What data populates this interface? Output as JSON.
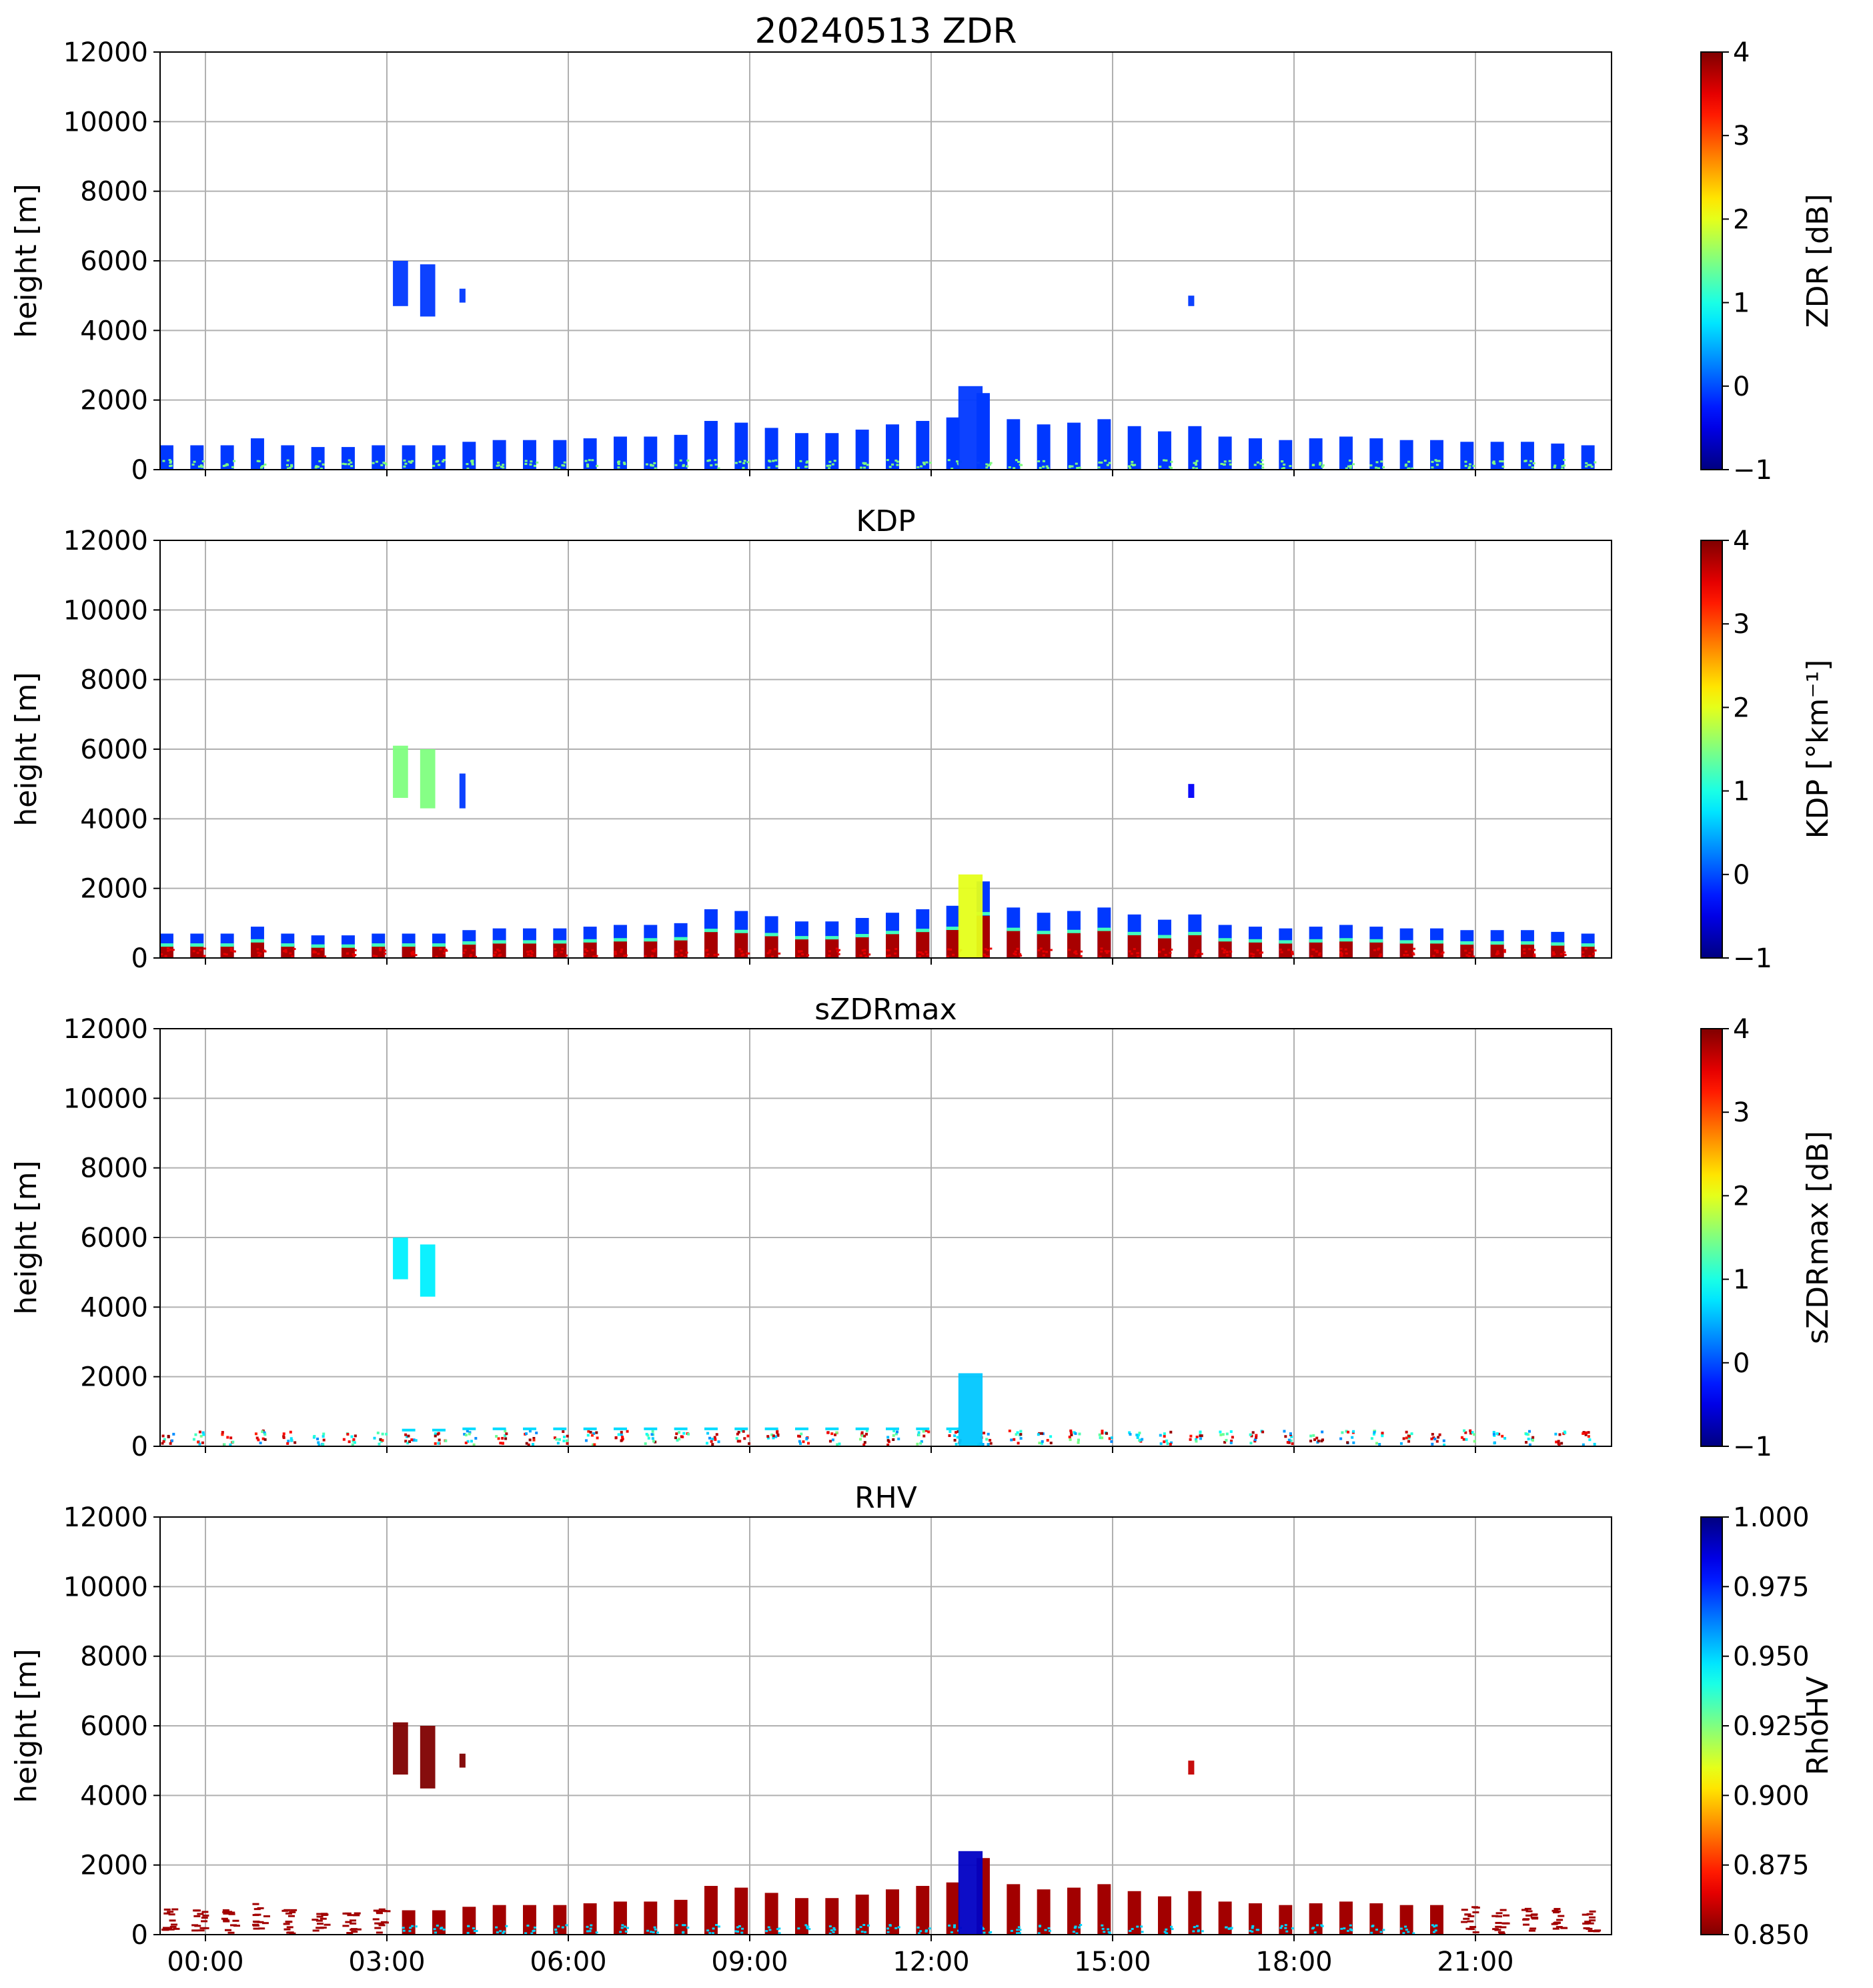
{
  "x_axis": {
    "tick_labels": [
      "00:00",
      "03:00",
      "06:00",
      "09:00",
      "12:00",
      "15:00",
      "18:00",
      "21:00"
    ],
    "tick_hours": [
      0,
      3,
      6,
      9,
      12,
      15,
      18,
      21
    ],
    "range_hours": [
      -0.75,
      23.25
    ]
  },
  "chart_data": [
    {
      "type": "heatmap",
      "title": "20240513 ZDR",
      "ylabel": "height [m]",
      "ylim": [
        0,
        12000
      ],
      "yticks": [
        0,
        2000,
        4000,
        6000,
        8000,
        10000,
        12000
      ],
      "colorbar": {
        "label": "ZDR [dB]",
        "range": [
          -1,
          4
        ],
        "ticks": [
          -1,
          0,
          1,
          2,
          3,
          4
        ],
        "tick_labels": [
          "−1",
          "0",
          "1",
          "2",
          "3",
          "4"
        ],
        "colormap": "jet"
      },
      "features": [
        {
          "kind": "cloud",
          "t_hours": [
            3.1,
            3.35
          ],
          "height_m": [
            4700,
            6000
          ],
          "value": -0.1
        },
        {
          "kind": "cloud",
          "t_hours": [
            3.55,
            3.8
          ],
          "height_m": [
            4400,
            5900
          ],
          "value": -0.1
        },
        {
          "kind": "cloud",
          "t_hours": [
            4.2,
            4.3
          ],
          "height_m": [
            4800,
            5200
          ],
          "value": -0.1
        },
        {
          "kind": "cloud",
          "t_hours": [
            16.25,
            16.35
          ],
          "height_m": [
            4700,
            5000
          ],
          "value": -0.1
        },
        {
          "kind": "spike",
          "t_hours": [
            12.45,
            12.85
          ],
          "height_m": [
            0,
            2400
          ],
          "value": -0.1
        }
      ]
    },
    {
      "type": "heatmap",
      "title": "KDP",
      "ylabel": "height [m]",
      "ylim": [
        0,
        12000
      ],
      "yticks": [
        0,
        2000,
        4000,
        6000,
        8000,
        10000,
        12000
      ],
      "colorbar": {
        "label": "KDP [°km⁻¹]",
        "range": [
          -1,
          4
        ],
        "ticks": [
          -1,
          0,
          1,
          2,
          3,
          4
        ],
        "tick_labels": [
          "−1",
          "0",
          "1",
          "2",
          "3",
          "4"
        ],
        "colormap": "jet"
      },
      "features": [
        {
          "kind": "cloud",
          "t_hours": [
            3.1,
            3.35
          ],
          "height_m": [
            4600,
            6100
          ],
          "value": 1.5
        },
        {
          "kind": "cloud",
          "t_hours": [
            3.55,
            3.8
          ],
          "height_m": [
            4300,
            6000
          ],
          "value": 1.5
        },
        {
          "kind": "cloud",
          "t_hours": [
            4.2,
            4.3
          ],
          "height_m": [
            4300,
            5300
          ],
          "value": -0.1
        },
        {
          "kind": "cloud",
          "t_hours": [
            16.25,
            16.35
          ],
          "height_m": [
            4600,
            5000
          ],
          "value": -0.4
        },
        {
          "kind": "spike",
          "t_hours": [
            12.45,
            12.85
          ],
          "height_m": [
            0,
            2400
          ],
          "value": 2.0
        }
      ]
    },
    {
      "type": "heatmap",
      "title": "sZDRmax",
      "ylabel": "height [m]",
      "ylim": [
        0,
        12000
      ],
      "yticks": [
        0,
        2000,
        4000,
        6000,
        8000,
        10000,
        12000
      ],
      "colorbar": {
        "label": "sZDRmax [dB]",
        "range": [
          -1,
          4
        ],
        "ticks": [
          -1,
          0,
          1,
          2,
          3,
          4
        ],
        "tick_labels": [
          "−1",
          "0",
          "1",
          "2",
          "3",
          "4"
        ],
        "colormap": "jet"
      },
      "features": [
        {
          "kind": "cloud",
          "t_hours": [
            3.1,
            3.35
          ],
          "height_m": [
            4800,
            6000
          ],
          "value": 0.8
        },
        {
          "kind": "cloud",
          "t_hours": [
            3.55,
            3.8
          ],
          "height_m": [
            4300,
            5800
          ],
          "value": 0.8
        },
        {
          "kind": "spike",
          "t_hours": [
            12.45,
            12.85
          ],
          "height_m": [
            0,
            2100
          ],
          "value": 0.6
        }
      ]
    },
    {
      "type": "heatmap",
      "title": "RHV",
      "ylabel": "height [m]",
      "ylim": [
        0,
        12000
      ],
      "yticks": [
        0,
        2000,
        4000,
        6000,
        8000,
        10000,
        12000
      ],
      "colorbar": {
        "label": "RhoHV",
        "range": [
          0.85,
          1.0
        ],
        "ticks": [
          0.85,
          0.875,
          0.9,
          0.925,
          0.95,
          0.975,
          1.0
        ],
        "tick_labels": [
          "0.850",
          "0.875",
          "0.900",
          "0.925",
          "0.950",
          "0.975",
          "1.000"
        ],
        "colormap": "jet_r"
      },
      "features": [
        {
          "kind": "cloud",
          "t_hours": [
            3.1,
            3.35
          ],
          "height_m": [
            4600,
            6100
          ],
          "value": 0.85
        },
        {
          "kind": "cloud",
          "t_hours": [
            3.55,
            3.8
          ],
          "height_m": [
            4200,
            6000
          ],
          "value": 0.85
        },
        {
          "kind": "cloud",
          "t_hours": [
            4.2,
            4.3
          ],
          "height_m": [
            4800,
            5200
          ],
          "value": 0.85
        },
        {
          "kind": "cloud",
          "t_hours": [
            16.25,
            16.35
          ],
          "height_m": [
            4600,
            5000
          ],
          "value": 0.86
        },
        {
          "kind": "spike",
          "t_hours": [
            12.45,
            12.85
          ],
          "height_m": [
            0,
            2400
          ],
          "value": 0.99
        }
      ]
    }
  ],
  "scan_blocks": {
    "t_start_hours": [
      -0.75,
      -0.25,
      0.25,
      0.75,
      1.25,
      1.75,
      2.25,
      2.75,
      3.25,
      3.75,
      4.25,
      4.75,
      5.25,
      5.75,
      6.25,
      6.75,
      7.25,
      7.75,
      8.25,
      8.75,
      9.25,
      9.75,
      10.25,
      10.75,
      11.25,
      11.75,
      12.25,
      12.75,
      13.25,
      13.75,
      14.25,
      14.75,
      15.25,
      15.75,
      16.25,
      16.75,
      17.25,
      17.75,
      18.25,
      18.75,
      19.25,
      19.75,
      20.25,
      20.75,
      21.25,
      21.75,
      22.25,
      22.75
    ],
    "block_width_hours": 0.22,
    "top_height_m": [
      700,
      700,
      700,
      900,
      700,
      650,
      650,
      700,
      700,
      700,
      800,
      850,
      850,
      850,
      900,
      950,
      950,
      1000,
      1400,
      1350,
      1200,
      1050,
      1050,
      1150,
      1300,
      1400,
      1500,
      2200,
      1450,
      1300,
      1350,
      1450,
      1250,
      1100,
      1250,
      950,
      900,
      850,
      900,
      950,
      900,
      850,
      850,
      800,
      800,
      800,
      750,
      700
    ]
  }
}
